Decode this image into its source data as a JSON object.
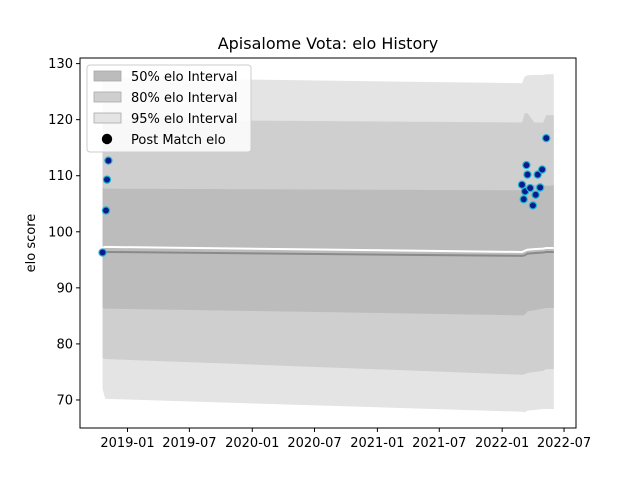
{
  "chart_data": {
    "type": "line",
    "title": "Apisalome Vota: elo History",
    "xlabel": "",
    "ylabel": "elo score",
    "xlim": [
      "2018-08-15",
      "2022-08-05"
    ],
    "ylim": [
      65,
      131
    ],
    "x_ticks": [
      "2019-01",
      "2019-07",
      "2020-01",
      "2020-07",
      "2021-01",
      "2021-07",
      "2022-01",
      "2022-07"
    ],
    "y_ticks": [
      70,
      80,
      90,
      100,
      110,
      120,
      130
    ],
    "grid": false,
    "legend": {
      "placement": "top-left",
      "entries": [
        "50% elo Interval",
        "80% elo Interval",
        "95% elo Interval",
        "Post Match elo"
      ]
    },
    "colors": {
      "band_50": "#bcbcbc",
      "band_80": "#cfcfcf",
      "band_95": "#e4e4e4",
      "mean_line": "#8a8a8a",
      "upper_line": "#ffffff",
      "point_fill": "#0b1a8c",
      "point_edge": "#1fb7d4"
    },
    "bands": [
      {
        "name": "95% elo Interval",
        "dates": [
          "2018-10-20",
          "2018-10-28",
          "2022-02-28",
          "2022-03-08",
          "2022-03-16",
          "2022-04-05",
          "2022-05-01",
          "2022-05-10",
          "2022-06-01"
        ],
        "lower": [
          72,
          70.2,
          67.9,
          67.8,
          68.1,
          68.2,
          68.4,
          68.4,
          68.4
        ],
        "upper": [
          127.2,
          127.5,
          126.5,
          127.7,
          127.9,
          128.0,
          128.0,
          128.1,
          128.1
        ]
      },
      {
        "name": "80% elo Interval",
        "dates": [
          "2018-10-20",
          "2018-10-28",
          "2022-02-28",
          "2022-03-08",
          "2022-03-16",
          "2022-04-05",
          "2022-05-01",
          "2022-05-10",
          "2022-06-01"
        ],
        "lower": [
          77.5,
          77.3,
          74.5,
          74.6,
          74.8,
          75.0,
          75.2,
          75.5,
          75.5
        ],
        "upper": [
          119.9,
          120.0,
          119.5,
          121.1,
          121.2,
          119.5,
          119.5,
          120.8,
          120.8
        ]
      },
      {
        "name": "50% elo Interval",
        "dates": [
          "2018-10-20",
          "2018-10-28",
          "2022-02-28",
          "2022-03-08",
          "2022-03-16",
          "2022-04-05",
          "2022-05-01",
          "2022-05-10",
          "2022-06-01"
        ],
        "lower": [
          86.4,
          86.3,
          85.1,
          85.2,
          85.8,
          86.0,
          86.3,
          86.4,
          86.4
        ],
        "upper": [
          107.8,
          107.7,
          107.4,
          107.9,
          108.3,
          108.4,
          108.3,
          108.2,
          108.3
        ]
      }
    ],
    "mean_line": {
      "dates": [
        "2018-10-20",
        "2018-10-28",
        "2022-02-28",
        "2022-03-08",
        "2022-03-16",
        "2022-04-05",
        "2022-05-01",
        "2022-05-10",
        "2022-06-01"
      ],
      "values": [
        96.4,
        96.4,
        95.7,
        95.8,
        96.1,
        96.2,
        96.3,
        96.4,
        96.4
      ]
    },
    "upper_line": {
      "dates": [
        "2018-10-20",
        "2018-10-28",
        "2022-02-28",
        "2022-03-08",
        "2022-03-16",
        "2022-04-05",
        "2022-05-01",
        "2022-05-10",
        "2022-06-01"
      ],
      "values": [
        97.2,
        97.3,
        96.4,
        96.6,
        96.8,
        96.9,
        97.0,
        97.1,
        97.1
      ]
    },
    "series": [
      {
        "name": "Post Match elo",
        "dates": [
          "2018-10-20",
          "2018-10-30",
          "2018-11-02",
          "2018-11-06",
          "2022-02-28",
          "2022-03-05",
          "2022-03-09",
          "2022-03-13",
          "2022-03-16",
          "2022-03-24",
          "2022-04-01",
          "2022-04-09",
          "2022-04-15",
          "2022-04-22",
          "2022-04-28",
          "2022-05-10"
        ],
        "values": [
          96.3,
          103.8,
          109.3,
          112.7,
          108.4,
          105.8,
          107.2,
          111.9,
          110.2,
          107.8,
          104.7,
          106.6,
          110.2,
          107.9,
          111.1,
          116.7
        ]
      }
    ]
  }
}
